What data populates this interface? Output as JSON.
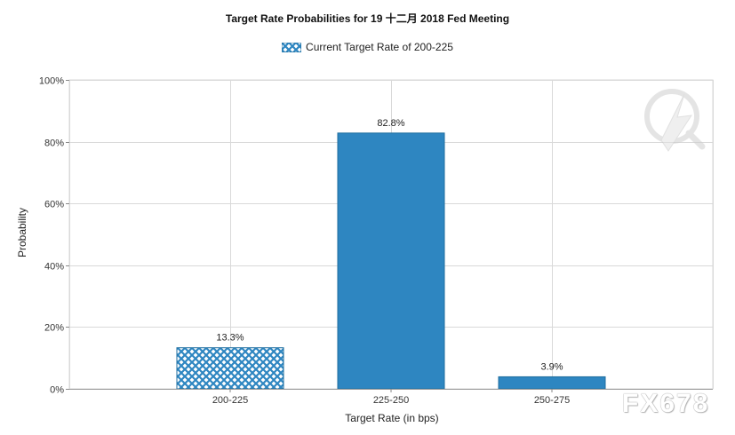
{
  "chart_data": {
    "type": "bar",
    "title": "Target Rate Probabilities for 19 十二月 2018  Fed Meeting",
    "xlabel": "Target Rate (in bps)",
    "ylabel": "Probability",
    "categories": [
      "200-225",
      "225-250",
      "250-275"
    ],
    "values": [
      13.3,
      82.8,
      3.9
    ],
    "value_labels": [
      "13.3%",
      "82.8%",
      "3.9%"
    ],
    "ylim": [
      0,
      100
    ],
    "yticks": [
      "0%",
      "20%",
      "40%",
      "60%",
      "80%",
      "100%"
    ],
    "ytick_values": [
      0,
      20,
      40,
      60,
      80,
      100
    ],
    "legend": [
      {
        "name": "Current Target Rate of 200-225",
        "pattern": "crosshatch"
      }
    ],
    "legend_position": "top-center",
    "highlight_category": "200-225",
    "grid": true,
    "colors": {
      "bar": "#2e86c1",
      "bar_dark": "#1f6e9f",
      "grid": "#d9d9d9"
    }
  },
  "watermark": {
    "text": "FX678"
  }
}
